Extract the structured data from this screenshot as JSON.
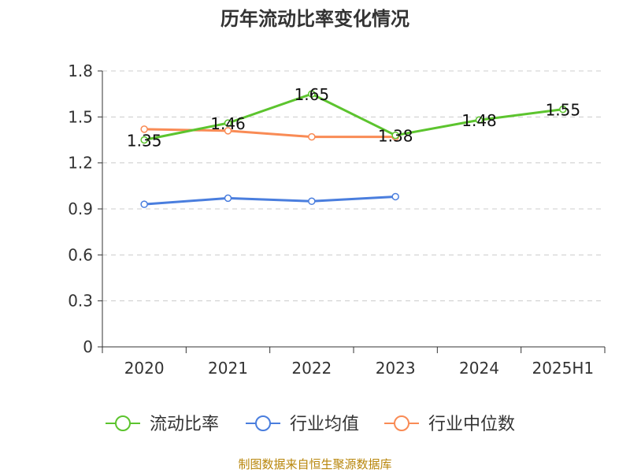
{
  "chart_data": {
    "type": "line",
    "title": "历年流动比率变化情况",
    "categories": [
      "2020",
      "2021",
      "2022",
      "2023",
      "2024",
      "2025H1"
    ],
    "ylim": [
      0,
      1.8
    ],
    "yticks": [
      "0",
      "0.3",
      "0.6",
      "0.9",
      "1.2",
      "1.5",
      "1.8"
    ],
    "grid": true,
    "legend_position": "bottom",
    "series": [
      {
        "name": "流动比率",
        "color": "#5cc42e",
        "values": [
          1.35,
          1.46,
          1.65,
          1.38,
          1.48,
          1.55
        ],
        "labels": [
          "1.35",
          "1.46",
          "1.65",
          "1.38",
          "1.48",
          "1.55"
        ]
      },
      {
        "name": "行业均值",
        "color": "#4a7ede",
        "values": [
          0.93,
          0.97,
          0.95,
          0.98,
          null,
          null
        ]
      },
      {
        "name": "行业中位数",
        "color": "#f98b55",
        "values": [
          1.42,
          1.41,
          1.37,
          1.37,
          null,
          null
        ]
      }
    ]
  },
  "source": "制图数据来自恒生聚源数据库"
}
